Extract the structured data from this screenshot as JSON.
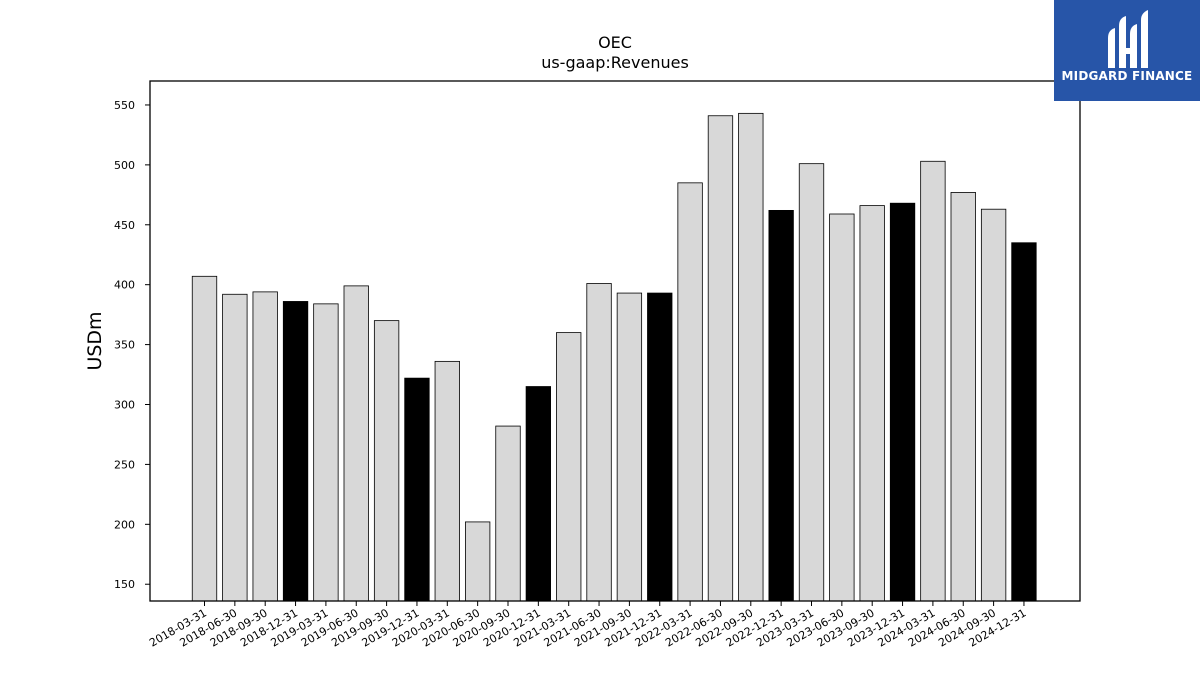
{
  "chart_data": {
    "type": "bar",
    "title": "OEC",
    "subtitle": "us-gaap:Revenues",
    "xlabel": "",
    "ylabel": "USDm",
    "ylim": [
      136,
      570
    ],
    "yticks": [
      150,
      200,
      250,
      300,
      350,
      400,
      450,
      500,
      550
    ],
    "grid": false,
    "categories": [
      "2018-03-31",
      "2018-06-30",
      "2018-09-30",
      "2018-12-31",
      "2019-03-31",
      "2019-06-30",
      "2019-09-30",
      "2019-12-31",
      "2020-03-31",
      "2020-06-30",
      "2020-09-30",
      "2020-12-31",
      "2021-03-31",
      "2021-06-30",
      "2021-09-30",
      "2021-12-31",
      "2022-03-31",
      "2022-06-30",
      "2022-09-30",
      "2022-12-31",
      "2023-03-31",
      "2023-06-30",
      "2023-09-30",
      "2023-12-31",
      "2024-03-31",
      "2024-06-30",
      "2024-09-30",
      "2024-12-31"
    ],
    "values": [
      407,
      392,
      394,
      386,
      384,
      399,
      370,
      322,
      336,
      202,
      282,
      315,
      360,
      401,
      393,
      393,
      485,
      541,
      543,
      462,
      501,
      459,
      466,
      468,
      503,
      477,
      463,
      435
    ],
    "colors": {
      "quarter": "#d8d8d8",
      "year_end": "#000000",
      "edge": "#000000"
    }
  },
  "brand": {
    "name": "MIDGARD FINANCE",
    "color": "#2755a8"
  }
}
